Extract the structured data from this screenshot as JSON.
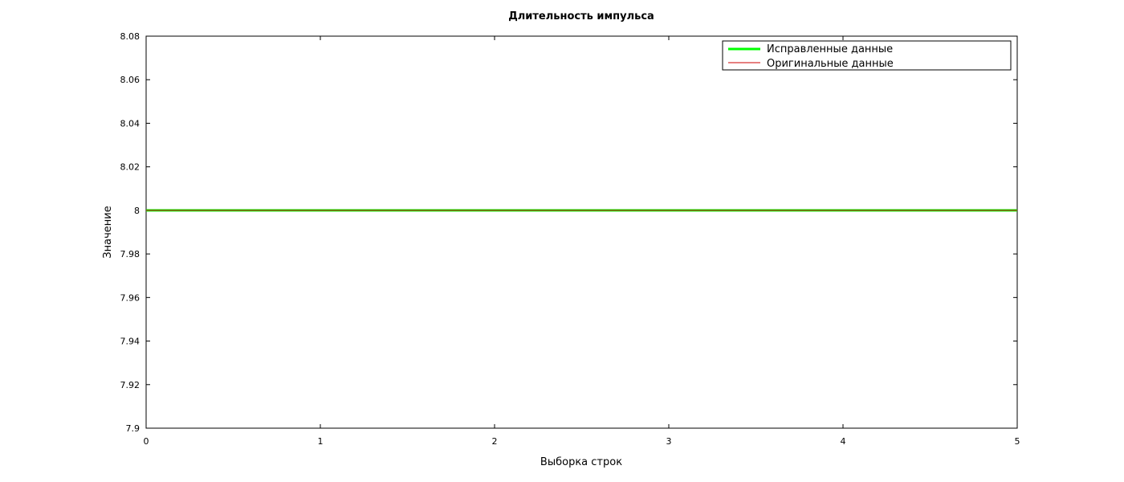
{
  "chart_data": {
    "type": "line",
    "title": "Длительность импульса",
    "xlabel": "Выборка строк",
    "ylabel": "Значение",
    "xlim": [
      0,
      5
    ],
    "ylim": [
      7.9,
      8.08
    ],
    "x_ticks": [
      "0",
      "1",
      "2",
      "3",
      "4",
      "5"
    ],
    "y_ticks": [
      "7.9",
      "7.92",
      "7.94",
      "7.96",
      "7.98",
      "8",
      "8.02",
      "8.04",
      "8.06",
      "8.08"
    ],
    "grid": false,
    "legend_position": "top-right",
    "series": [
      {
        "name": "Исправленные данные",
        "color": "#00ff00",
        "x": [
          0,
          1,
          2,
          3,
          4,
          5
        ],
        "y": [
          8,
          8,
          8,
          8,
          8,
          8
        ]
      },
      {
        "name": "Оригинальные данные",
        "color": "#cc0000",
        "x": [
          0,
          1,
          2,
          3,
          4,
          5
        ],
        "y": [
          8,
          8,
          8,
          8,
          8,
          8
        ]
      }
    ]
  }
}
